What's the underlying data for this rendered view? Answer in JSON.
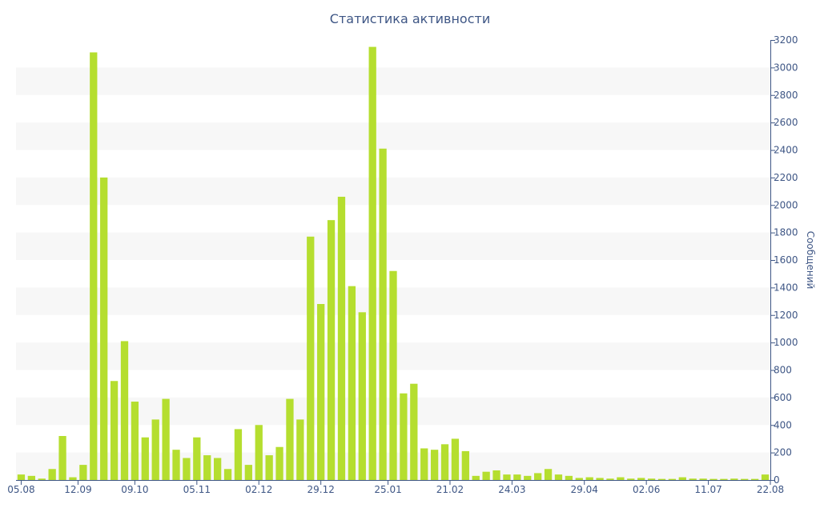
{
  "chart_data": {
    "type": "bar",
    "title": "Статистика активности",
    "xlabel": "",
    "ylabel": "Сообщений",
    "ylim": [
      0,
      3200
    ],
    "y_ticks": [
      0,
      200,
      400,
      600,
      800,
      1000,
      1200,
      1400,
      1600,
      1800,
      2000,
      2200,
      2400,
      2600,
      2800,
      3000,
      3200
    ],
    "y_axis_side": "right",
    "grid": "alternating horizontal bands",
    "bar_color": "#b5de2f",
    "text_color": "#3e5685",
    "x_tick_labels": [
      "05.08",
      "12.09",
      "09.10",
      "05.11",
      "02.12",
      "29.12",
      "25.01",
      "21.02",
      "24.03",
      "29.04",
      "02.06",
      "11.07",
      "22.08"
    ],
    "x_tick_positions": [
      0,
      5.5,
      11,
      17,
      23,
      29,
      35.5,
      41.5,
      47.5,
      54.5,
      60.5,
      66.5,
      72.5
    ],
    "values": [
      40,
      30,
      10,
      80,
      320,
      20,
      110,
      3110,
      2200,
      720,
      1010,
      570,
      310,
      440,
      590,
      220,
      160,
      310,
      180,
      160,
      80,
      370,
      110,
      400,
      180,
      240,
      590,
      440,
      1770,
      1280,
      1890,
      2060,
      1410,
      1220,
      3150,
      2410,
      1520,
      630,
      700,
      230,
      220,
      260,
      300,
      210,
      30,
      60,
      70,
      40,
      40,
      30,
      50,
      80,
      40,
      30,
      15,
      20,
      15,
      10,
      20,
      10,
      15,
      10,
      8,
      8,
      20,
      10,
      10,
      8,
      8,
      10,
      8,
      8,
      40
    ]
  }
}
